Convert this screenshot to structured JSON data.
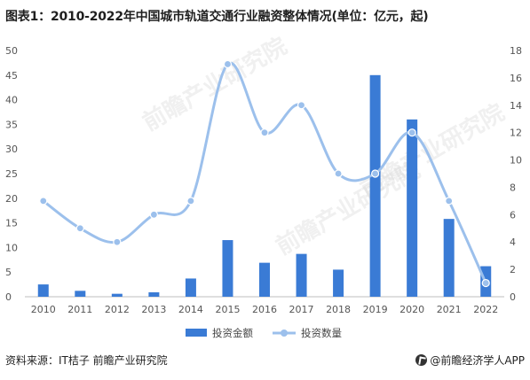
{
  "header": {
    "title": "图表1：2010-2022年中国城市轨道交通行业融资整体情况(单位：亿元，起)"
  },
  "footer": {
    "source": "资料来源：IT桔子 前瞻产业研究院",
    "brand": "@前瞻经济学人APP"
  },
  "watermarks": [
    "前瞻产业研究院",
    "前瞻产业研究院",
    "前瞻产业研究院"
  ],
  "colors": {
    "bar": "#3a7bd5",
    "line": "#9cc0ec"
  },
  "chart_data": {
    "type": "bar",
    "categories": [
      "2010",
      "2011",
      "2012",
      "2013",
      "2014",
      "2015",
      "2016",
      "2017",
      "2018",
      "2019",
      "2020",
      "2021",
      "2022"
    ],
    "series": [
      {
        "name": "投资金额",
        "type": "bar",
        "axis": "left",
        "values": [
          2.5,
          1.2,
          0.6,
          0.9,
          3.7,
          11.5,
          6.9,
          8.7,
          5.5,
          45,
          36,
          15.8,
          6.2
        ]
      },
      {
        "name": "投资数量",
        "type": "line",
        "axis": "right",
        "values": [
          7,
          5,
          4,
          6,
          7,
          17,
          12,
          14,
          9,
          9,
          12,
          7,
          1
        ]
      }
    ],
    "left_axis": {
      "ylim": [
        0,
        50
      ],
      "ticks": [
        "0",
        "5",
        "10",
        "15",
        "20",
        "25",
        "30",
        "35",
        "40",
        "45",
        "50"
      ]
    },
    "right_axis": {
      "ylim": [
        0,
        18
      ],
      "ticks": [
        "0",
        "2",
        "4",
        "6",
        "8",
        "10",
        "12",
        "14",
        "16",
        "18"
      ]
    },
    "grid": false,
    "legend": "bottom-center"
  }
}
